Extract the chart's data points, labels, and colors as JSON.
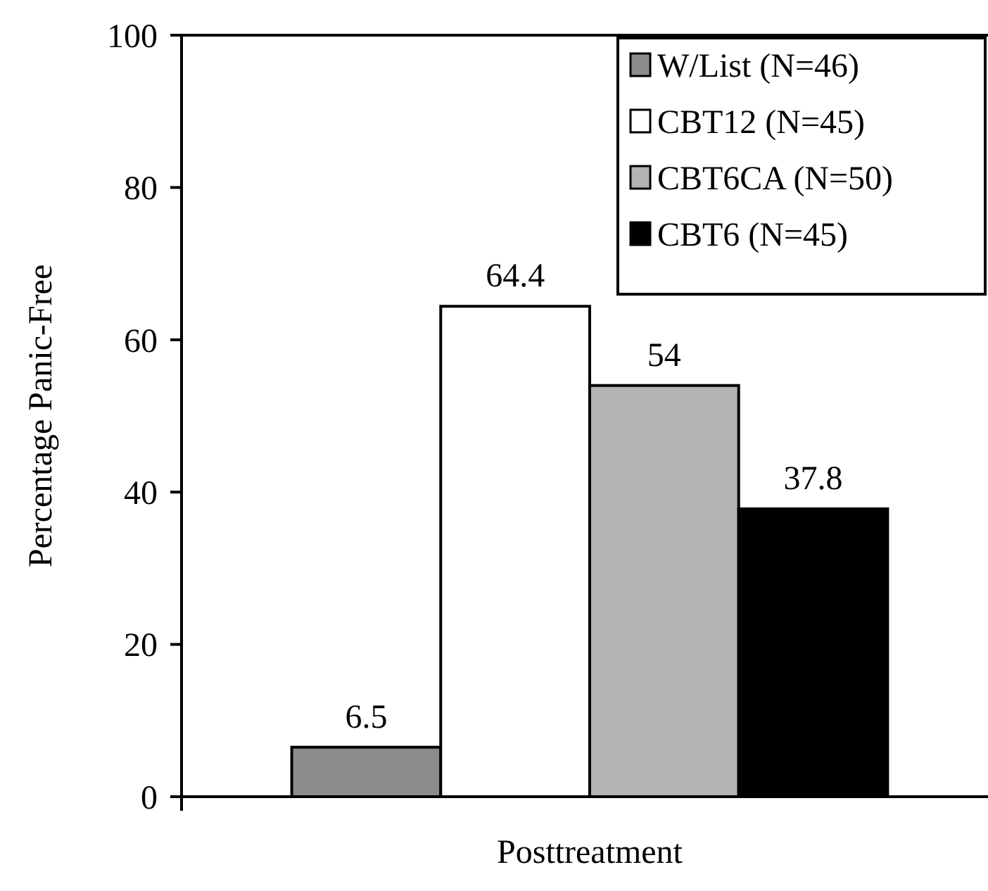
{
  "chart_data": {
    "type": "bar",
    "categories": [
      "Posttreatment"
    ],
    "ylabel": "Percentage Panic-Free",
    "series": [
      {
        "name": "W/List (N=46)",
        "color": "#8c8c8c",
        "values": [
          6.5
        ]
      },
      {
        "name": "CBT12 (N=45)",
        "color": "#ffffff",
        "values": [
          64.4
        ]
      },
      {
        "name": "CBT6CA (N=50)",
        "color": "#b4b4b4",
        "values": [
          54
        ]
      },
      {
        "name": "CBT6 (N=45)",
        "color": "#000000",
        "values": [
          37.8
        ]
      }
    ],
    "ylim": [
      0,
      100
    ],
    "yticks": [
      0,
      20,
      40,
      60,
      80,
      100
    ],
    "data_labels": true,
    "legend": "top right",
    "grid": false
  }
}
